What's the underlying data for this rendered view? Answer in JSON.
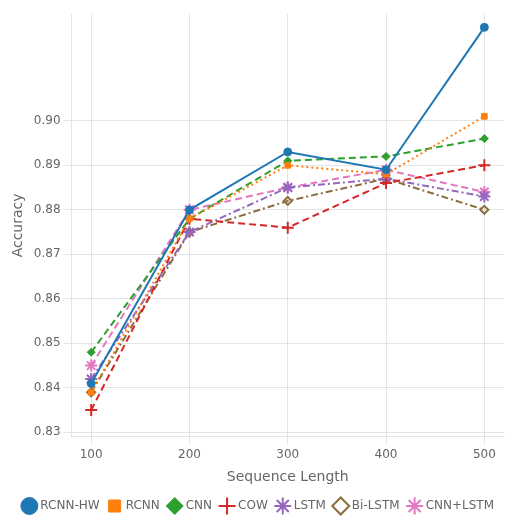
{
  "chart_data": {
    "type": "line",
    "x": [
      100,
      200,
      300,
      400,
      500
    ],
    "series": [
      {
        "name": "RCNN-HW",
        "color": "#1f77b4",
        "marker": "circle",
        "line_style": "solid",
        "values": [
          0.841,
          0.88,
          0.893,
          0.889,
          0.921
        ]
      },
      {
        "name": "RCNN",
        "color": "#ff7f0e",
        "marker": "square",
        "line_style": "dotted",
        "values": [
          0.839,
          0.878,
          0.89,
          0.888,
          0.901
        ]
      },
      {
        "name": "CNN",
        "color": "#2ca02c",
        "marker": "diamond",
        "line_style": "dashed",
        "values": [
          0.848,
          0.878,
          0.891,
          0.892,
          0.896
        ]
      },
      {
        "name": "COW",
        "color": "#d62728",
        "marker": "plus",
        "line_style": "dashed",
        "values": [
          0.835,
          0.878,
          0.876,
          0.886,
          0.89
        ]
      },
      {
        "name": "LSTM",
        "color": "#9467bd",
        "marker": "star",
        "line_style": "dashdot",
        "values": [
          0.842,
          0.875,
          0.885,
          0.887,
          0.883
        ]
      },
      {
        "name": "Bi-LSTM",
        "color": "#8c6d3f",
        "marker": "hollow_diamond",
        "line_style": "dashdot",
        "values": [
          0.839,
          0.875,
          0.882,
          0.887,
          0.88
        ]
      },
      {
        "name": "CNN+LSTM",
        "color": "#e377c2",
        "marker": "star",
        "line_style": "dashed",
        "values": [
          0.845,
          0.88,
          0.885,
          0.889,
          0.884
        ]
      }
    ],
    "xlabel": "Sequence Length",
    "ylabel": "Accuracy",
    "xlim": [
      80,
      520
    ],
    "xticks": [
      100,
      200,
      300,
      400,
      500
    ],
    "ylim": [
      0.829,
      0.924
    ],
    "yticks": [
      0.83,
      0.84,
      0.85,
      0.86,
      0.87,
      0.88,
      0.89,
      {
        "value": 0.9,
        "label": "0.90"
      }
    ],
    "grid": true,
    "legend": "lower right"
  }
}
